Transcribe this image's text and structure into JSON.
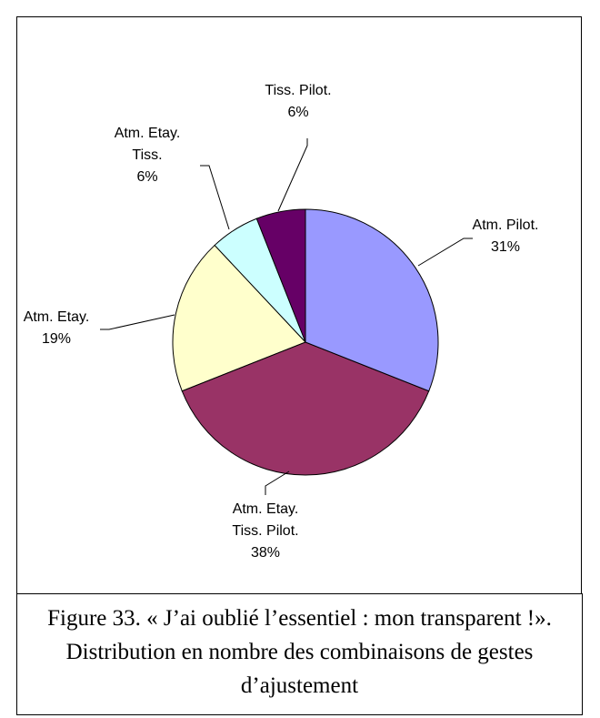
{
  "chart_data": {
    "type": "pie",
    "categories": [
      "Atm. Pilot.",
      "Atm. Etay. Tiss. Pilot.",
      "Atm. Etay.",
      "Atm. Etay. Tiss.",
      "Tiss. Pilot."
    ],
    "values": [
      31,
      38,
      19,
      6,
      6
    ],
    "value_labels": [
      "31%",
      "38%",
      "19%",
      "6%",
      "6%"
    ],
    "colors": [
      "#9999ff",
      "#993366",
      "#ffffcc",
      "#ccffff",
      "#660066"
    ]
  },
  "caption": "Figure 33. « J’ai oublié l’essentiel : mon transparent !». Distribution en nombre des combinaisons de gestes d’ajustement"
}
